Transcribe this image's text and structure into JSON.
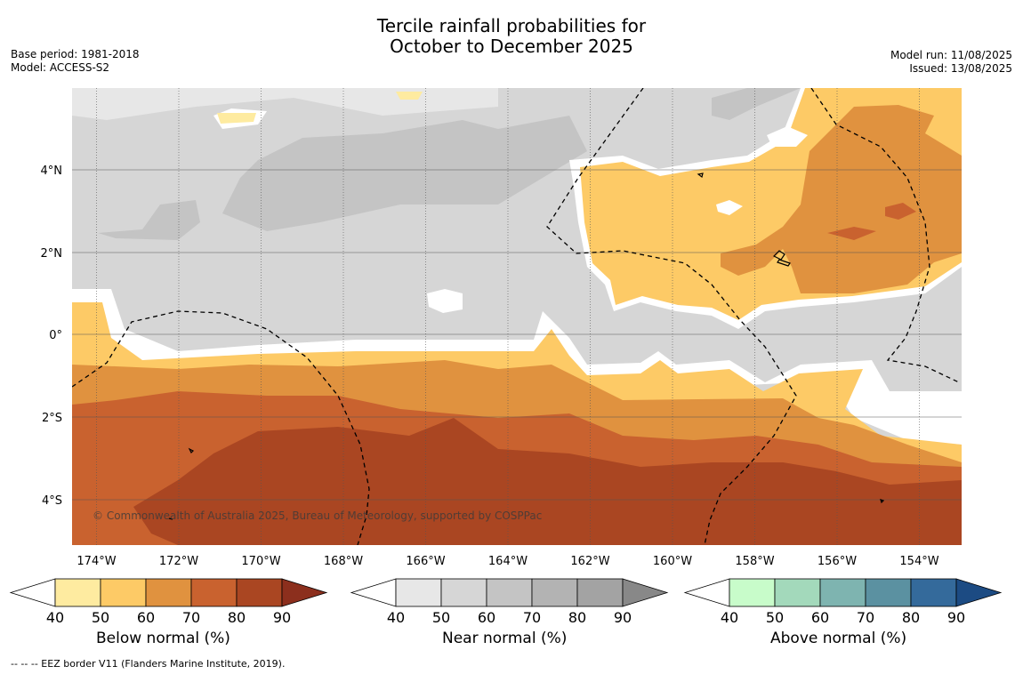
{
  "title_line1": "Tercile rainfall probabilities for",
  "title_line2": "October to December 2025",
  "base_period": "Base period: 1981-2018",
  "model": "Model: ACCESS-S2",
  "model_run": "Model run: 11/08/2025",
  "issued": "Issued: 13/08/2025",
  "copyright": "© Commonwealth of Australia 2025, Bureau of Meteorology, supported by COSPPac",
  "footer": "--  --  -- EEZ border V11 (Flanders Marine Institute, 2019).",
  "map": {
    "lon_labels": [
      "174°W",
      "172°W",
      "170°W",
      "168°W",
      "166°W",
      "164°W",
      "162°W",
      "160°W",
      "158°W",
      "156°W",
      "154°W"
    ],
    "lat_labels": [
      "4°N",
      "2°N",
      "0°",
      "2°S",
      "4°S"
    ]
  },
  "colorbars": [
    {
      "label": "Below normal (%)",
      "ticks": [
        "40",
        "50",
        "60",
        "70",
        "80",
        "90"
      ],
      "colors": [
        "#ffffff",
        "#feeba0",
        "#fdca66",
        "#e0923f",
        "#c9622f",
        "#aa4622",
        "#8c2f1d"
      ]
    },
    {
      "label": "Near normal (%)",
      "ticks": [
        "40",
        "50",
        "60",
        "70",
        "80",
        "90"
      ],
      "colors": [
        "#ffffff",
        "#e7e7e7",
        "#d6d6d6",
        "#c4c4c4",
        "#b3b3b3",
        "#a3a3a3",
        "#888888"
      ]
    },
    {
      "label": "Above normal (%)",
      "ticks": [
        "40",
        "50",
        "60",
        "70",
        "80",
        "90"
      ],
      "colors": [
        "#ffffff",
        "#c8fcca",
        "#a3d9bb",
        "#7eb4b0",
        "#5b91a1",
        "#346a9b",
        "#1c4b83"
      ]
    }
  ]
}
